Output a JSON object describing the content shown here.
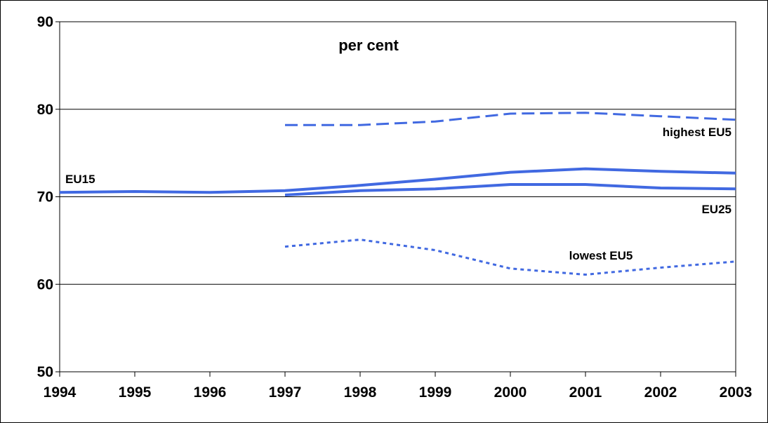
{
  "chart_data": {
    "type": "line",
    "title": "per cent",
    "xlabel": "",
    "ylabel": "",
    "x": [
      1994,
      1995,
      1996,
      1997,
      1998,
      1999,
      2000,
      2001,
      2002,
      2003
    ],
    "xlim": [
      1994,
      2003
    ],
    "ylim": [
      50,
      90
    ],
    "yticks": [
      50,
      60,
      70,
      80,
      90
    ],
    "grid": true,
    "series": [
      {
        "name": "EU15",
        "style": "solid",
        "color": "#4169e1",
        "x": [
          1994,
          1995,
          1996,
          1997,
          1998,
          1999,
          2000,
          2001,
          2002,
          2003
        ],
        "values": [
          70.5,
          70.6,
          70.5,
          70.7,
          71.3,
          72.0,
          72.8,
          73.2,
          72.9,
          72.7
        ]
      },
      {
        "name": "EU25",
        "style": "solid",
        "color": "#4169e1",
        "x": [
          1997,
          1998,
          1999,
          2000,
          2001,
          2002,
          2003
        ],
        "values": [
          70.2,
          70.7,
          70.9,
          71.4,
          71.4,
          71.0,
          70.9
        ]
      },
      {
        "name": "highest EU5",
        "style": "dashed",
        "color": "#4169e1",
        "x": [
          1997,
          1998,
          1999,
          2000,
          2001,
          2002,
          2003
        ],
        "values": [
          78.2,
          78.2,
          78.6,
          79.5,
          79.6,
          79.2,
          78.8
        ]
      },
      {
        "name": "lowest EU5",
        "style": "dotted",
        "color": "#4169e1",
        "x": [
          1997,
          1998,
          1999,
          2000,
          2001,
          2002,
          2003
        ],
        "values": [
          64.3,
          65.1,
          63.9,
          61.8,
          61.1,
          61.9,
          62.6
        ]
      }
    ]
  }
}
